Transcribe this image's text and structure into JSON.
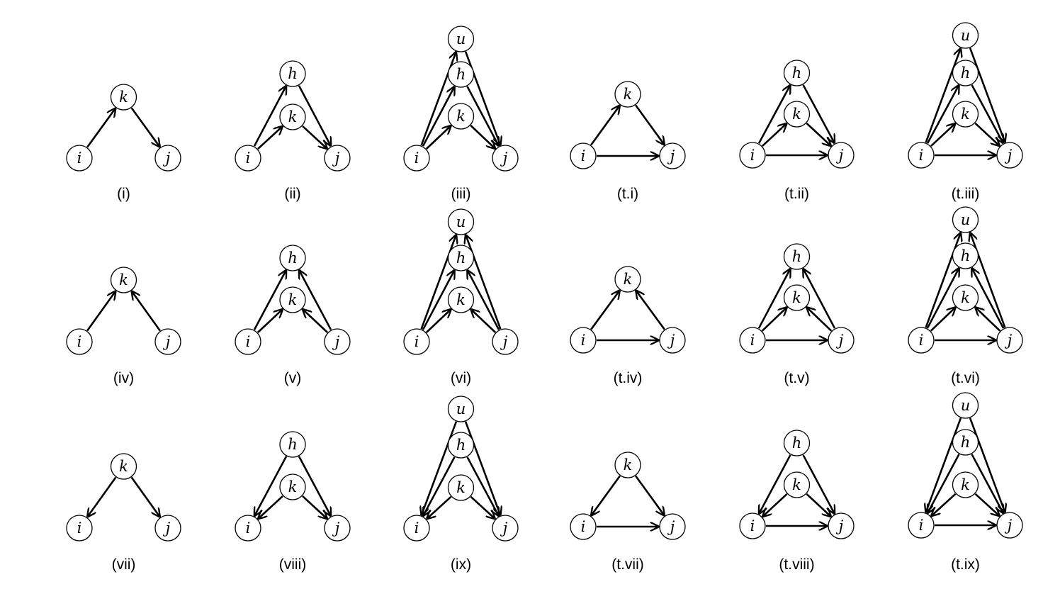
{
  "diagrams": [
    {
      "caption": "(i)",
      "nodes": [
        "i",
        "j",
        "k"
      ],
      "edges": [
        [
          "i",
          "k"
        ],
        [
          "k",
          "j"
        ]
      ]
    },
    {
      "caption": "(ii)",
      "nodes": [
        "i",
        "j",
        "k",
        "h"
      ],
      "edges": [
        [
          "i",
          "k"
        ],
        [
          "i",
          "h"
        ],
        [
          "k",
          "j"
        ],
        [
          "h",
          "j"
        ]
      ]
    },
    {
      "caption": "(iii)",
      "nodes": [
        "i",
        "j",
        "k",
        "h",
        "u"
      ],
      "edges": [
        [
          "i",
          "k"
        ],
        [
          "i",
          "h"
        ],
        [
          "i",
          "u"
        ],
        [
          "k",
          "j"
        ],
        [
          "h",
          "j"
        ],
        [
          "u",
          "j"
        ]
      ]
    },
    {
      "caption": "(t.i)",
      "nodes": [
        "i",
        "j",
        "k"
      ],
      "edges": [
        [
          "i",
          "k"
        ],
        [
          "k",
          "j"
        ],
        [
          "i",
          "j"
        ]
      ]
    },
    {
      "caption": "(t.ii)",
      "nodes": [
        "i",
        "j",
        "k",
        "h"
      ],
      "edges": [
        [
          "i",
          "k"
        ],
        [
          "i",
          "h"
        ],
        [
          "k",
          "j"
        ],
        [
          "h",
          "j"
        ],
        [
          "i",
          "j"
        ]
      ]
    },
    {
      "caption": "(t.iii)",
      "nodes": [
        "i",
        "j",
        "k",
        "h",
        "u"
      ],
      "edges": [
        [
          "i",
          "k"
        ],
        [
          "i",
          "h"
        ],
        [
          "i",
          "u"
        ],
        [
          "k",
          "j"
        ],
        [
          "h",
          "j"
        ],
        [
          "u",
          "j"
        ],
        [
          "i",
          "j"
        ]
      ]
    },
    {
      "caption": "(iv)",
      "nodes": [
        "i",
        "j",
        "k"
      ],
      "edges": [
        [
          "i",
          "k"
        ],
        [
          "j",
          "k"
        ]
      ]
    },
    {
      "caption": "(v)",
      "nodes": [
        "i",
        "j",
        "k",
        "h"
      ],
      "edges": [
        [
          "i",
          "k"
        ],
        [
          "i",
          "h"
        ],
        [
          "j",
          "k"
        ],
        [
          "j",
          "h"
        ]
      ]
    },
    {
      "caption": "(vi)",
      "nodes": [
        "i",
        "j",
        "k",
        "h",
        "u"
      ],
      "edges": [
        [
          "i",
          "k"
        ],
        [
          "i",
          "h"
        ],
        [
          "i",
          "u"
        ],
        [
          "j",
          "k"
        ],
        [
          "j",
          "h"
        ],
        [
          "j",
          "u"
        ]
      ]
    },
    {
      "caption": "(t.iv)",
      "nodes": [
        "i",
        "j",
        "k"
      ],
      "edges": [
        [
          "i",
          "k"
        ],
        [
          "j",
          "k"
        ],
        [
          "i",
          "j"
        ]
      ]
    },
    {
      "caption": "(t.v)",
      "nodes": [
        "i",
        "j",
        "k",
        "h"
      ],
      "edges": [
        [
          "i",
          "k"
        ],
        [
          "i",
          "h"
        ],
        [
          "j",
          "k"
        ],
        [
          "j",
          "h"
        ],
        [
          "i",
          "j"
        ]
      ]
    },
    {
      "caption": "(t.vi)",
      "nodes": [
        "i",
        "j",
        "k",
        "h",
        "u"
      ],
      "edges": [
        [
          "i",
          "k"
        ],
        [
          "i",
          "h"
        ],
        [
          "i",
          "u"
        ],
        [
          "j",
          "k"
        ],
        [
          "j",
          "h"
        ],
        [
          "j",
          "u"
        ],
        [
          "i",
          "j"
        ]
      ]
    },
    {
      "caption": "(vii)",
      "nodes": [
        "i",
        "j",
        "k"
      ],
      "edges": [
        [
          "k",
          "i"
        ],
        [
          "k",
          "j"
        ]
      ]
    },
    {
      "caption": "(viii)",
      "nodes": [
        "i",
        "j",
        "k",
        "h"
      ],
      "edges": [
        [
          "k",
          "i"
        ],
        [
          "h",
          "i"
        ],
        [
          "k",
          "j"
        ],
        [
          "h",
          "j"
        ]
      ]
    },
    {
      "caption": "(ix)",
      "nodes": [
        "i",
        "j",
        "k",
        "h",
        "u"
      ],
      "edges": [
        [
          "k",
          "i"
        ],
        [
          "h",
          "i"
        ],
        [
          "u",
          "i"
        ],
        [
          "k",
          "j"
        ],
        [
          "h",
          "j"
        ],
        [
          "u",
          "j"
        ]
      ]
    },
    {
      "caption": "(t.vii)",
      "nodes": [
        "i",
        "j",
        "k"
      ],
      "edges": [
        [
          "k",
          "i"
        ],
        [
          "k",
          "j"
        ],
        [
          "i",
          "j"
        ]
      ]
    },
    {
      "caption": "(t.viii)",
      "nodes": [
        "i",
        "j",
        "k",
        "h"
      ],
      "edges": [
        [
          "k",
          "i"
        ],
        [
          "h",
          "i"
        ],
        [
          "k",
          "j"
        ],
        [
          "h",
          "j"
        ],
        [
          "i",
          "j"
        ]
      ]
    },
    {
      "caption": "(t.ix)",
      "nodes": [
        "i",
        "j",
        "k",
        "h",
        "u"
      ],
      "edges": [
        [
          "k",
          "i"
        ],
        [
          "h",
          "i"
        ],
        [
          "u",
          "i"
        ],
        [
          "k",
          "j"
        ],
        [
          "h",
          "j"
        ],
        [
          "u",
          "j"
        ],
        [
          "i",
          "j"
        ]
      ]
    }
  ]
}
